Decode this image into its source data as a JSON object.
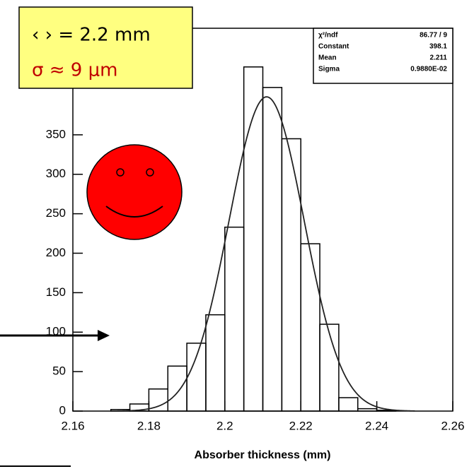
{
  "chart_data": {
    "type": "histogram",
    "x_label": "Absorber thickness (mm)",
    "bins": [
      2.17,
      2.175,
      2.18,
      2.185,
      2.19,
      2.195,
      2.2,
      2.205,
      2.21,
      2.215,
      2.22,
      2.225,
      2.23,
      2.235,
      2.24,
      2.245
    ],
    "values": [
      2,
      9,
      28,
      57,
      86,
      122,
      233,
      436,
      410,
      345,
      212,
      110,
      17,
      3,
      1
    ],
    "color": "#000000",
    "xlim": [
      2.16,
      2.26
    ],
    "xticks": [
      2.16,
      2.18,
      2.2,
      2.22,
      2.24,
      2.26
    ],
    "ylim": [
      0,
      485
    ],
    "yticks": [
      0,
      50,
      100,
      150,
      200,
      250,
      300,
      350
    ],
    "fit": [
      {
        "name": "Constant",
        "value": 398.1
      },
      {
        "name": "Mean",
        "value": 2.211
      },
      {
        "name": "Sigma",
        "value": 0.00988,
        "label": "0.9880E-02"
      }
    ],
    "chi2": {
      "name": "χ²/ndf",
      "label": "86.77  /  9"
    },
    "annotations": [
      "‹ › = 2.2 mm",
      "σ ≈ 9 μm"
    ]
  }
}
